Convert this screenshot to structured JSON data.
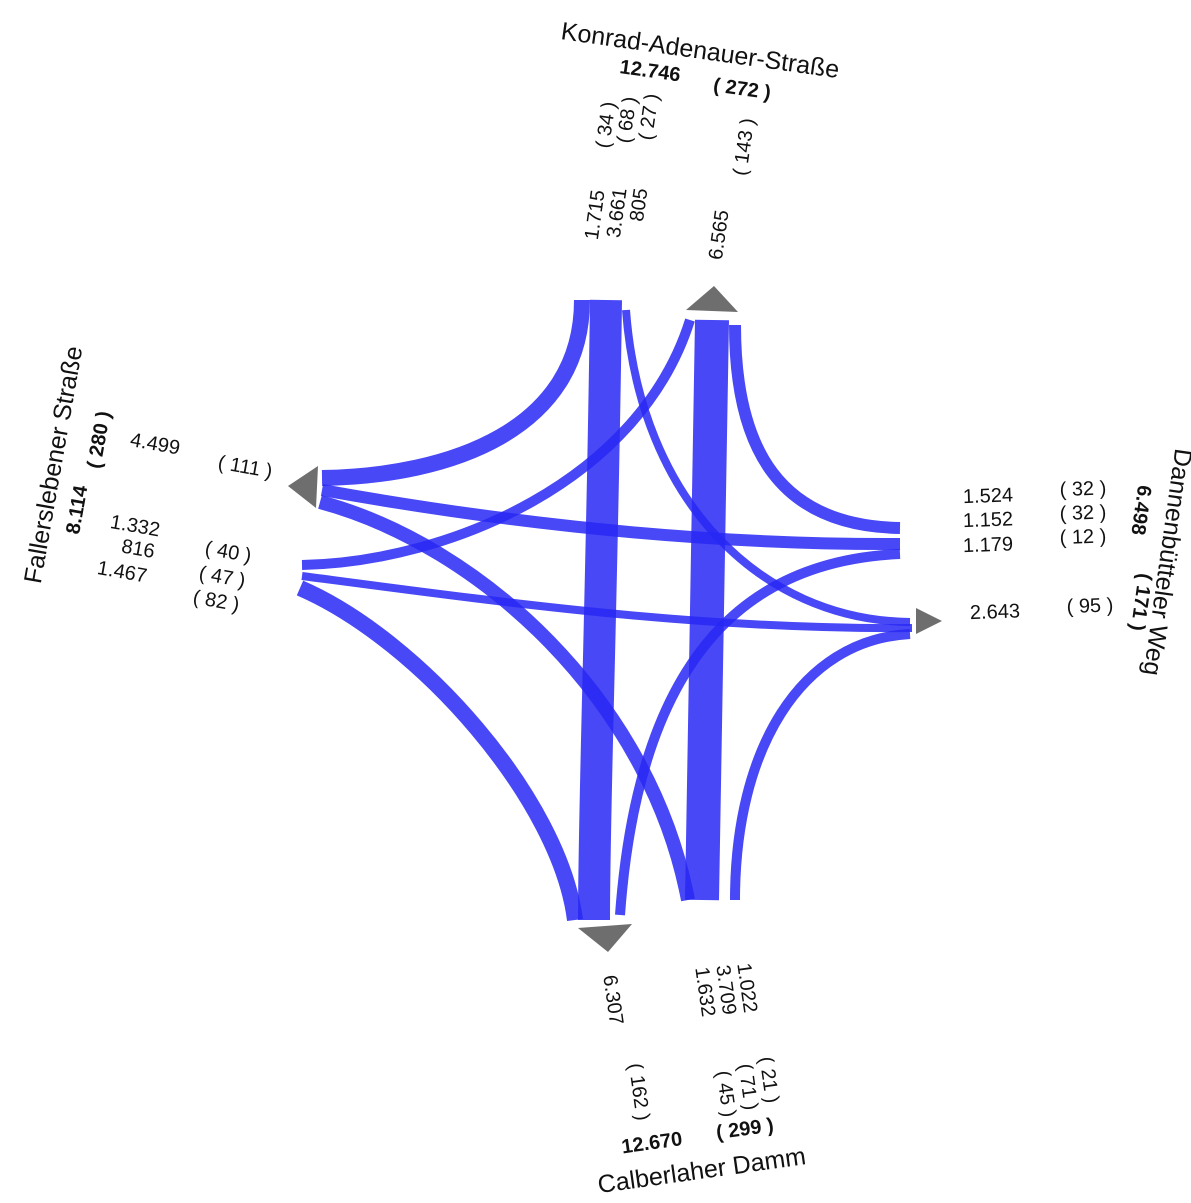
{
  "north": {
    "name": "Konrad-Adenauer-Straße",
    "total": "12.746",
    "total_heavy": "( 272 )",
    "inflows": [
      {
        "value": "1.715",
        "heavy": "( 34 )"
      },
      {
        "value": "3.661",
        "heavy": "( 68 )"
      },
      {
        "value": "805",
        "heavy": "( 27 )"
      }
    ],
    "outflow": {
      "value": "6.565",
      "heavy": "( 143 )"
    }
  },
  "east": {
    "name": "Dannenbütteler Weg",
    "total": "6.498",
    "total_heavy": "( 171 )",
    "inflows": [
      {
        "value": "1.524",
        "heavy": "( 32 )"
      },
      {
        "value": "1.152",
        "heavy": "( 32 )"
      },
      {
        "value": "1.179",
        "heavy": "( 12 )"
      }
    ],
    "outflow": {
      "value": "2.643",
      "heavy": "( 95 )"
    }
  },
  "south": {
    "name": "Calberlaher Damm",
    "total": "12.670",
    "total_heavy": "( 299 )",
    "inflows": [
      {
        "value": "1.022",
        "heavy": "( 21 )"
      },
      {
        "value": "3.709",
        "heavy": "( 71 )"
      },
      {
        "value": "1.632",
        "heavy": "( 45 )"
      }
    ],
    "outflow": {
      "value": "6.307",
      "heavy": "( 162 )"
    }
  },
  "west": {
    "name": "Fallerslebener Straße",
    "total": "8.114",
    "total_heavy": "( 280 )",
    "inflows": [
      {
        "value": "1.332",
        "heavy": "( 40 )"
      },
      {
        "value": "816",
        "heavy": "( 47 )"
      },
      {
        "value": "1.467",
        "heavy": "( 82 )"
      }
    ],
    "outflow": {
      "value": "4.499",
      "heavy": "( 111 )"
    }
  }
}
